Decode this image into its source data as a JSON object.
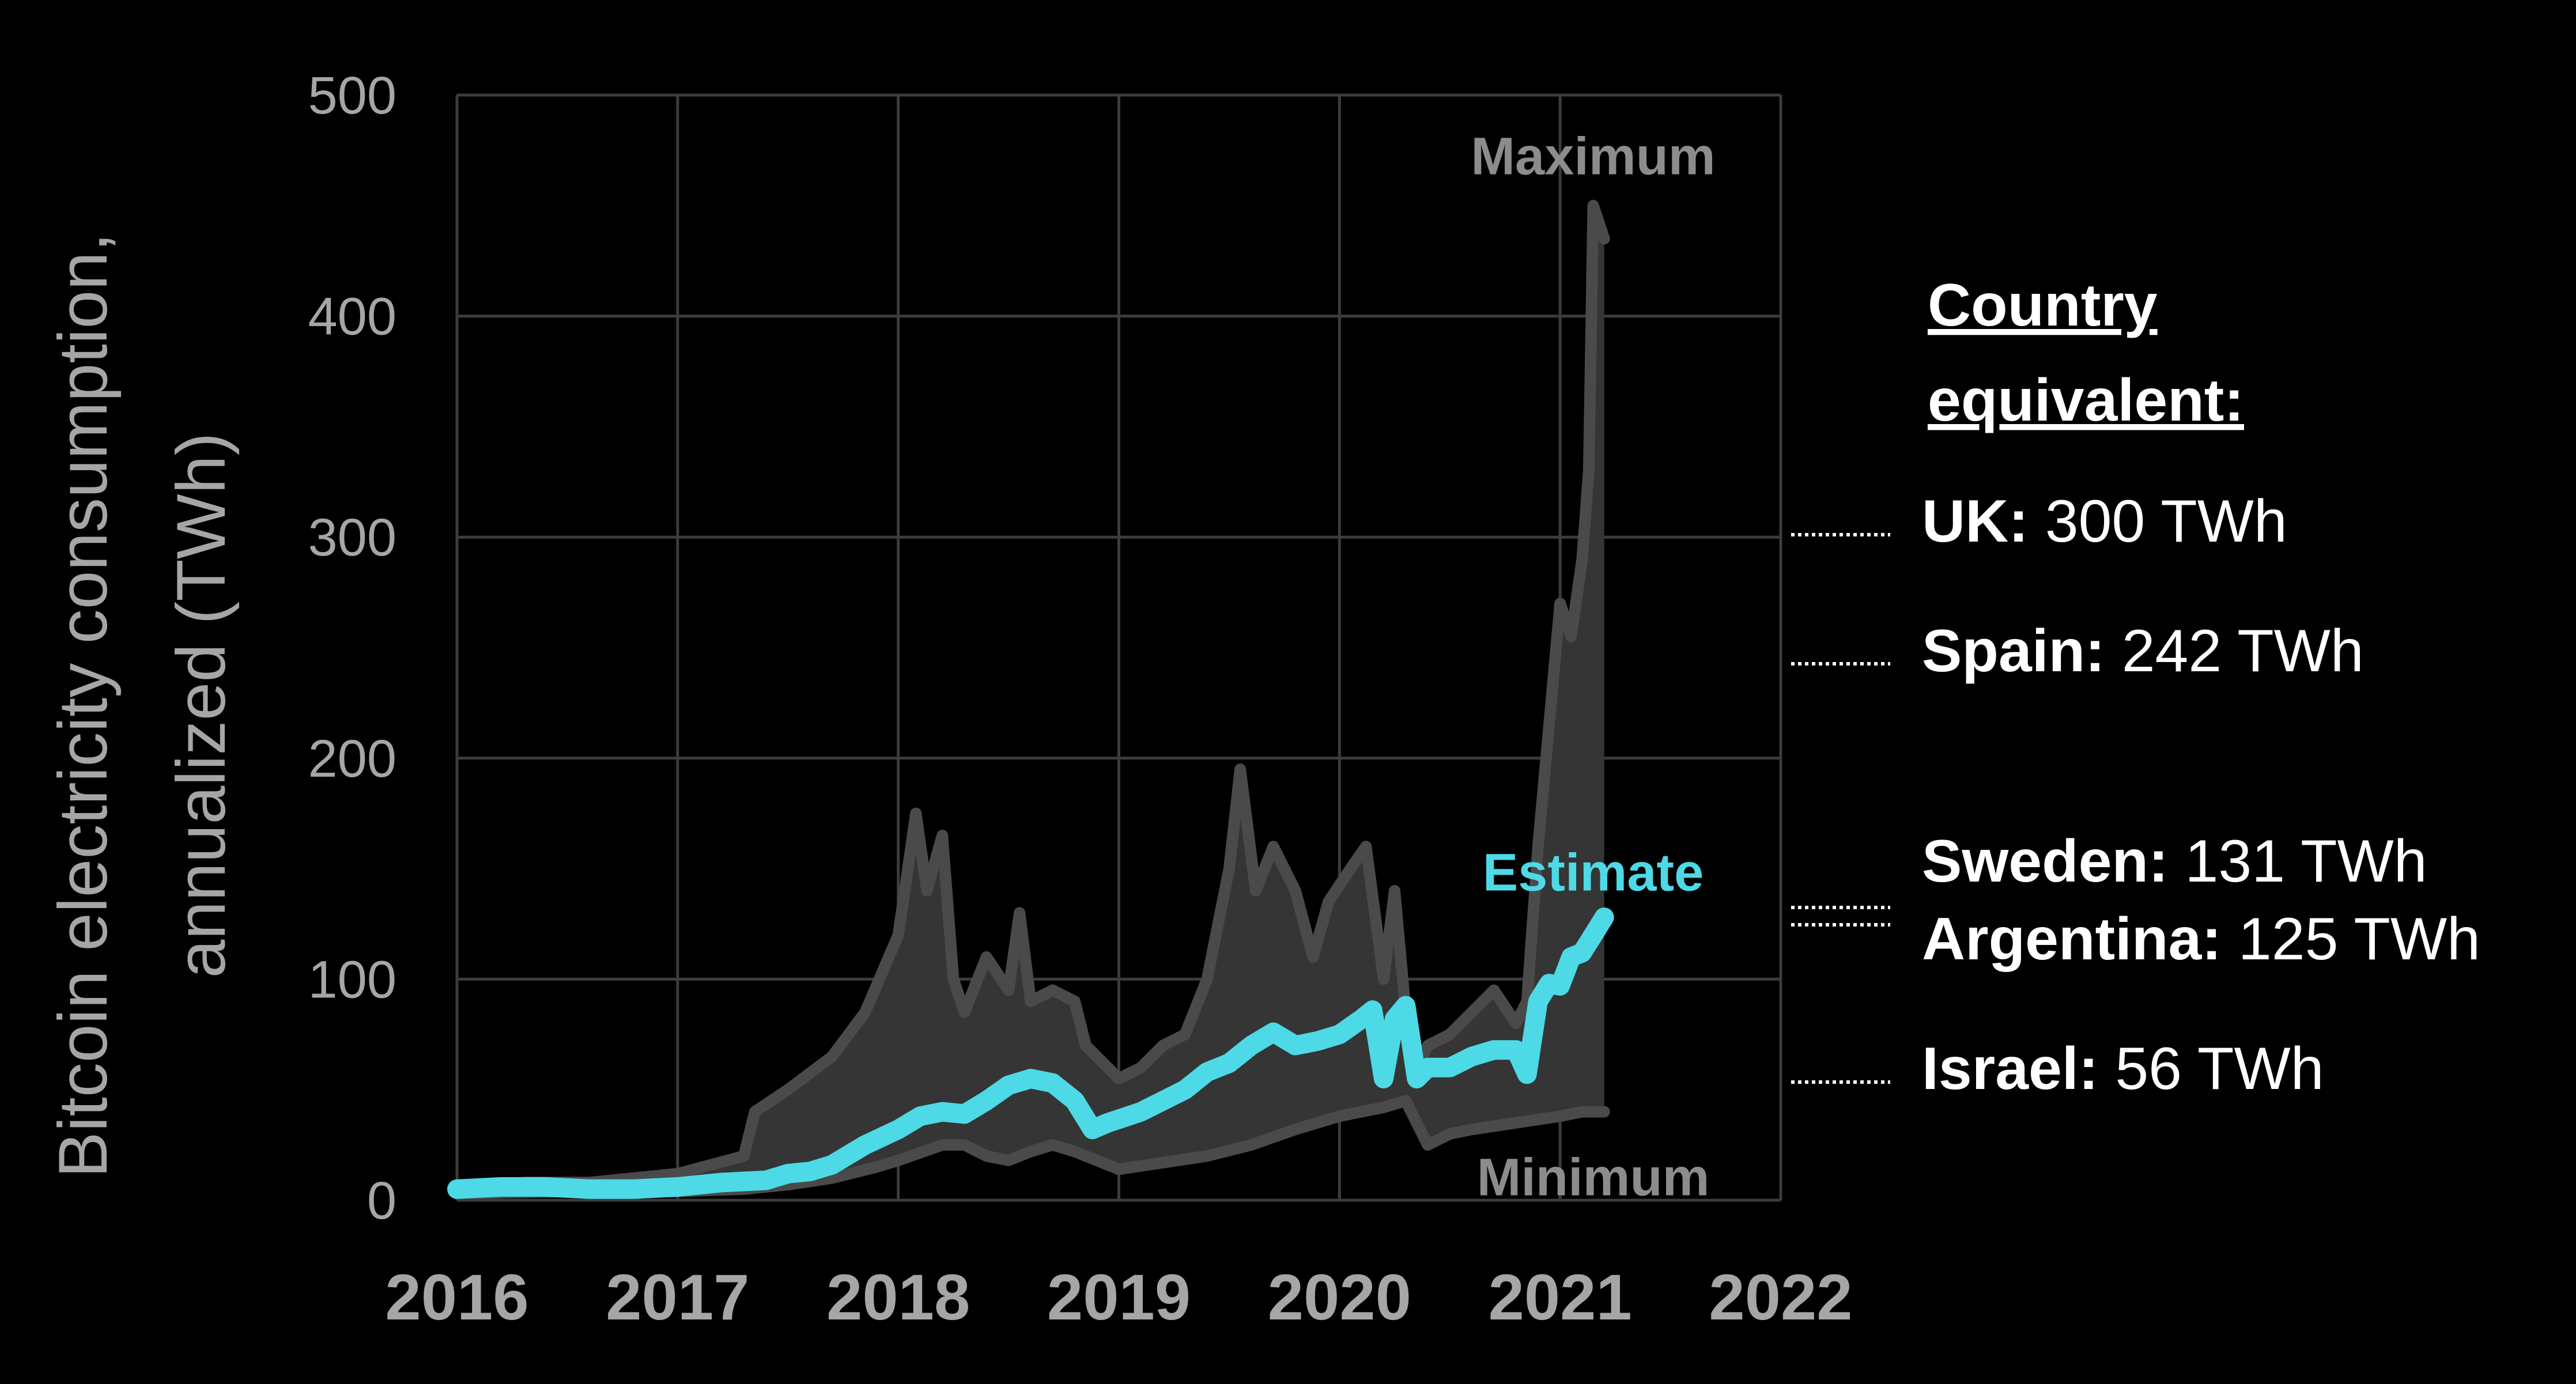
{
  "chart_data": {
    "type": "area",
    "ylabel": "Bitcoin electricity consumption, annualized (TWh)",
    "xlabel": "",
    "title": "",
    "xlim": [
      2016,
      2022
    ],
    "ylim": [
      0,
      500
    ],
    "x_ticks": [
      "2016",
      "2017",
      "2018",
      "2019",
      "2020",
      "2021",
      "2022"
    ],
    "y_ticks": [
      "0",
      "100",
      "200",
      "300",
      "400",
      "500"
    ],
    "grid": true,
    "colors": {
      "band": "#3a3a3a",
      "bounds": "#4a4a4a",
      "estimate": "#4dd9e6",
      "grid": "#3c3c3c",
      "background": "#000000"
    },
    "series": [
      {
        "name": "Maximum",
        "x": [
          2016.0,
          2016.3,
          2016.6,
          2017.0,
          2017.3,
          2017.35,
          2017.5,
          2017.7,
          2017.85,
          2018.0,
          2018.08,
          2018.13,
          2018.2,
          2018.25,
          2018.3,
          2018.4,
          2018.5,
          2018.55,
          2018.6,
          2018.7,
          2018.8,
          2018.85,
          2018.9,
          2019.0,
          2019.1,
          2019.2,
          2019.3,
          2019.4,
          2019.5,
          2019.55,
          2019.62,
          2019.7,
          2019.8,
          2019.88,
          2019.95,
          2020.05,
          2020.12,
          2020.2,
          2020.25,
          2020.3,
          2020.35,
          2020.4,
          2020.5,
          2020.6,
          2020.7,
          2020.8,
          2020.85,
          2020.9,
          2021.0,
          2021.05,
          2021.1,
          2021.13,
          2021.15,
          2021.2
        ],
        "values": [
          6,
          8,
          8,
          12,
          20,
          40,
          50,
          65,
          85,
          120,
          175,
          140,
          165,
          100,
          85,
          110,
          95,
          130,
          90,
          95,
          90,
          70,
          65,
          55,
          60,
          70,
          75,
          100,
          150,
          195,
          140,
          160,
          140,
          110,
          135,
          150,
          160,
          100,
          140,
          85,
          60,
          70,
          75,
          85,
          95,
          80,
          90,
          160,
          270,
          255,
          290,
          330,
          450,
          435
        ]
      },
      {
        "name": "Estimate",
        "x": [
          2016.0,
          2016.2,
          2016.4,
          2016.6,
          2016.8,
          2017.0,
          2017.2,
          2017.4,
          2017.5,
          2017.6,
          2017.7,
          2017.85,
          2018.0,
          2018.1,
          2018.2,
          2018.3,
          2018.4,
          2018.5,
          2018.6,
          2018.7,
          2018.8,
          2018.88,
          2018.95,
          2019.1,
          2019.2,
          2019.3,
          2019.4,
          2019.5,
          2019.6,
          2019.7,
          2019.8,
          2019.9,
          2020.0,
          2020.1,
          2020.15,
          2020.2,
          2020.25,
          2020.3,
          2020.35,
          2020.4,
          2020.5,
          2020.6,
          2020.7,
          2020.8,
          2020.85,
          2020.9,
          2020.95,
          2021.0,
          2021.05,
          2021.1,
          2021.15,
          2021.2
        ],
        "values": [
          5,
          6,
          6,
          5,
          5,
          6,
          8,
          9,
          12,
          13,
          16,
          25,
          32,
          38,
          40,
          39,
          45,
          52,
          55,
          53,
          45,
          32,
          35,
          40,
          45,
          50,
          58,
          62,
          70,
          76,
          70,
          72,
          75,
          82,
          86,
          55,
          82,
          88,
          55,
          60,
          60,
          65,
          68,
          68,
          57,
          90,
          98,
          97,
          110,
          112,
          120,
          128
        ]
      },
      {
        "name": "Minimum",
        "x": [
          2016.0,
          2016.5,
          2017.0,
          2017.3,
          2017.5,
          2017.7,
          2017.9,
          2018.0,
          2018.2,
          2018.3,
          2018.4,
          2018.5,
          2018.6,
          2018.7,
          2018.8,
          2018.9,
          2019.0,
          2019.2,
          2019.4,
          2019.6,
          2019.8,
          2020.0,
          2020.2,
          2020.3,
          2020.4,
          2020.5,
          2020.6,
          2020.8,
          2021.0,
          2021.1,
          2021.2
        ],
        "values": [
          3,
          4,
          4,
          5,
          7,
          10,
          15,
          18,
          25,
          25,
          20,
          18,
          22,
          25,
          22,
          18,
          14,
          17,
          20,
          25,
          32,
          38,
          42,
          45,
          25,
          30,
          32,
          35,
          38,
          40,
          40
        ]
      }
    ],
    "annotations": [
      {
        "text": "Maximum",
        "x": 2021.15,
        "y": 472
      },
      {
        "text": "Estimate",
        "x": 2021.15,
        "y": 148
      },
      {
        "text": "Minimum",
        "x": 2021.15,
        "y": 10
      }
    ],
    "legend": {
      "title": "Country equivalent:",
      "title_lines": [
        "Country",
        "equivalent:"
      ],
      "items": [
        {
          "country": "UK:",
          "value": "300 TWh",
          "twh": 300
        },
        {
          "country": "Spain:",
          "value": "242 TWh",
          "twh": 242
        },
        {
          "country": "Sweden:",
          "value": "131 TWh",
          "twh": 131
        },
        {
          "country": "Argentina:",
          "value": "125 TWh",
          "twh": 125
        },
        {
          "country": "Israel:",
          "value": "56 TWh",
          "twh": 56
        }
      ]
    }
  }
}
